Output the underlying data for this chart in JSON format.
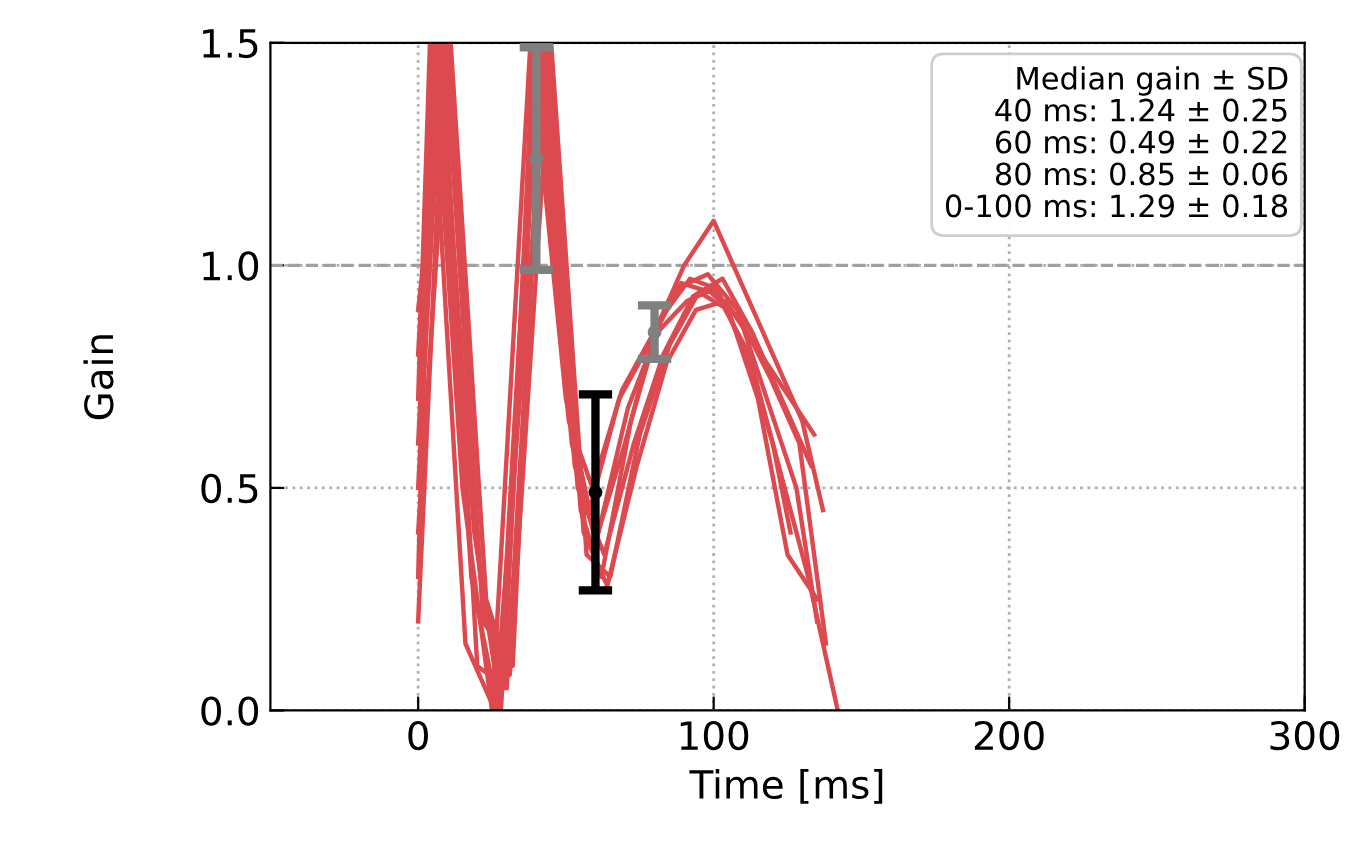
{
  "chart_data": {
    "type": "line",
    "xlabel": "Time [ms]",
    "ylabel": "Gain",
    "xlim": [
      -50,
      300
    ],
    "xticks": [
      0,
      100,
      200,
      300
    ],
    "ylim": [
      0,
      1.5
    ],
    "yticks": [
      {
        "value": 0,
        "label": "0.0"
      },
      0.5,
      {
        "value": 1,
        "label": "1.0"
      },
      1.5
    ],
    "grid": true,
    "line_style": "solid",
    "ref_lines": [
      {
        "axis": "y",
        "value": 1.0,
        "color": "#a0a0a0",
        "line_style": "dashed"
      }
    ],
    "annotations": [
      "Median gain ± SD",
      "40 ms: 1.24 ± 0.25",
      "60 ms: 0.49 ± 0.22",
      "80 ms: 0.85 ± 0.06",
      "0-100 ms: 1.29 ± 0.18"
    ],
    "series": [
      {
        "color": "#dc4a50",
        "x": [
          0,
          6,
          18,
          27,
          40,
          52,
          60,
          70,
          80,
          90,
          100,
          110,
          120,
          130,
          137
        ],
        "values": [
          0.8,
          1.5,
          0.3,
          0.0,
          1.5,
          0.6,
          0.38,
          0.6,
          0.85,
          1.0,
          1.1,
          0.95,
          0.8,
          0.65,
          0.45
        ]
      },
      {
        "color": "#dc4a50",
        "x": [
          0,
          8,
          20,
          30,
          43,
          55,
          62,
          72,
          82,
          92,
          100,
          112,
          122,
          132,
          142
        ],
        "values": [
          0.5,
          1.5,
          0.1,
          0.05,
          1.5,
          0.45,
          0.3,
          0.65,
          0.88,
          0.97,
          0.95,
          0.8,
          0.55,
          0.3,
          0.0
        ]
      },
      {
        "color": "#dc4a50",
        "x": [
          0,
          5,
          15,
          25,
          38,
          50,
          58,
          68,
          78,
          88,
          98,
          108,
          118,
          128,
          135
        ],
        "values": [
          0.3,
          1.5,
          0.5,
          0.0,
          1.5,
          0.7,
          0.45,
          0.7,
          0.82,
          0.95,
          0.98,
          0.9,
          0.7,
          0.5,
          0.2
        ]
      },
      {
        "color": "#dc4a50",
        "x": [
          0,
          10,
          22,
          32,
          42,
          54,
          63,
          73,
          83,
          93,
          103,
          113,
          123,
          133
        ],
        "values": [
          0.9,
          1.5,
          0.2,
          0.1,
          1.5,
          0.5,
          0.35,
          0.6,
          0.8,
          0.93,
          0.97,
          0.85,
          0.7,
          0.55
        ]
      },
      {
        "color": "#dc4a50",
        "x": [
          0,
          7,
          19,
          28,
          41,
          53,
          61,
          71,
          81,
          91,
          101,
          111,
          120,
          126
        ],
        "values": [
          0.6,
          1.5,
          0.4,
          0.0,
          1.5,
          0.55,
          0.4,
          0.68,
          0.85,
          0.92,
          0.95,
          0.8,
          0.6,
          0.4
        ]
      },
      {
        "color": "#dc4a50",
        "x": [
          0,
          9,
          21,
          29,
          39,
          51,
          59,
          69,
          79,
          89,
          99,
          109,
          119,
          129,
          138
        ],
        "values": [
          0.2,
          1.5,
          0.3,
          0.05,
          1.5,
          0.65,
          0.5,
          0.72,
          0.84,
          0.96,
          0.94,
          0.88,
          0.75,
          0.6,
          0.15
        ]
      },
      {
        "color": "#dc4a50",
        "x": [
          0,
          4,
          16,
          26,
          44,
          56,
          64,
          74,
          84,
          94,
          104,
          114,
          124,
          134
        ],
        "values": [
          0.7,
          1.5,
          0.15,
          0.0,
          1.5,
          0.4,
          0.28,
          0.55,
          0.78,
          0.9,
          0.92,
          0.82,
          0.72,
          0.62
        ]
      },
      {
        "color": "#dc4a50",
        "x": [
          0,
          11,
          23,
          31,
          45,
          57,
          65,
          75,
          85,
          95,
          105,
          115,
          125,
          135
        ],
        "values": [
          0.4,
          1.5,
          0.25,
          0.08,
          1.5,
          0.35,
          0.3,
          0.62,
          0.82,
          0.94,
          0.9,
          0.7,
          0.35,
          0.25
        ]
      },
      {
        "type": "scatter",
        "marker": "circle",
        "color": "#808080",
        "x": [
          40,
          80
        ],
        "values": [
          1.24,
          0.85
        ],
        "errors": [
          0.25,
          0.06
        ]
      },
      {
        "type": "scatter",
        "marker": "circle",
        "color": "#000000",
        "x": [
          60
        ],
        "values": [
          0.49
        ],
        "errors": [
          0.22
        ]
      }
    ]
  }
}
